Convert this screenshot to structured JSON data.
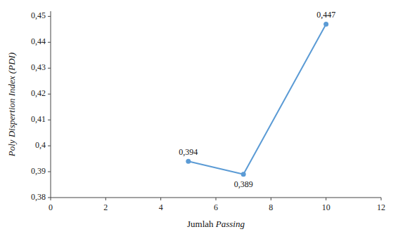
{
  "chart_data": {
    "type": "line",
    "x_label": "Jumlah Passing",
    "y_label": "Poly Dispertion Index (PDI)",
    "x": [
      5,
      7,
      10
    ],
    "values": [
      0.394,
      0.389,
      0.447
    ],
    "value_labels": [
      "0,394",
      "0,389",
      "0,447"
    ],
    "data_labels": true,
    "color": "#5b9bd5",
    "marker": "circle",
    "xlim": [
      0,
      12
    ],
    "ylim": [
      0.38,
      0.452
    ],
    "xticks": [
      0,
      2,
      4,
      6,
      8,
      10,
      12
    ],
    "yticks": [
      {
        "value": 0.38,
        "label": "0,38"
      },
      {
        "value": 0.39,
        "label": "0,39"
      },
      {
        "value": 0.4,
        "label": "0,4"
      },
      {
        "value": 0.41,
        "label": "0,41"
      },
      {
        "value": 0.42,
        "label": "0,42"
      },
      {
        "value": 0.43,
        "label": "0,43"
      },
      {
        "value": 0.44,
        "label": "0,44"
      },
      {
        "value": 0.45,
        "label": "0,45"
      }
    ],
    "grid": false
  }
}
